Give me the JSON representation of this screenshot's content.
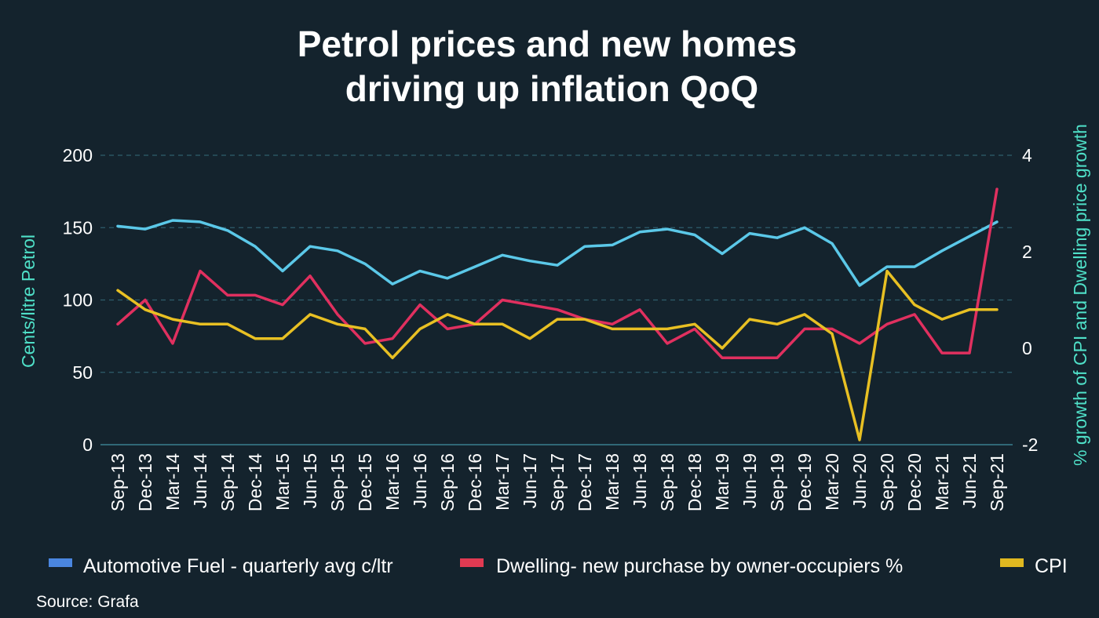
{
  "chart_data": {
    "type": "line",
    "title_lines": [
      "Petrol prices and new homes",
      "driving up inflation QoQ"
    ],
    "ylabel_left": "Cents/litre Petrol",
    "ylabel_right": "% growth of CPI and Dwelling price growth",
    "ylim_left": [
      0,
      200
    ],
    "ylim_right": [
      -2,
      4
    ],
    "yticks_left": [
      "0",
      "50",
      "100",
      "150",
      "200"
    ],
    "yticks_right": [
      "-2",
      "0",
      "2",
      "4"
    ],
    "grid": "dashed horizontal",
    "legend_position": "bottom",
    "categories": [
      "Sep-13",
      "Dec-13",
      "Mar-14",
      "Jun-14",
      "Sep-14",
      "Dec-14",
      "Mar-15",
      "Jun-15",
      "Sep-15",
      "Dec-15",
      "Mar-16",
      "Jun-16",
      "Sep-16",
      "Dec-16",
      "Mar-17",
      "Jun-17",
      "Sep-17",
      "Dec-17",
      "Mar-18",
      "Jun-18",
      "Sep-18",
      "Dec-18",
      "Mar-19",
      "Jun-19",
      "Sep-19",
      "Dec-19",
      "Mar-20",
      "Jun-20",
      "Sep-20",
      "Dec-20",
      "Mar-21",
      "Jun-21",
      "Sep-21"
    ],
    "series": [
      {
        "name": "Automotive Fuel - quarterly avg c/ltr",
        "axis": "left",
        "color": "#5bc8e8",
        "legend_color": "#4a86e0",
        "values": [
          151,
          149,
          155,
          154,
          148,
          137,
          120,
          137,
          134,
          125,
          111,
          120,
          115,
          123,
          131,
          127,
          124,
          137,
          138,
          147,
          149,
          145,
          132,
          146,
          143,
          150,
          139,
          110,
          123,
          123,
          134,
          144,
          154
        ]
      },
      {
        "name": "Dwelling- new purchase by owner-occupiers %",
        "axis": "right",
        "color": "#e0305f",
        "legend_color": "#e03a52",
        "values": [
          0.5,
          1.0,
          0.1,
          1.6,
          1.1,
          1.1,
          0.9,
          1.5,
          0.7,
          0.1,
          0.2,
          0.9,
          0.4,
          0.5,
          1.0,
          0.9,
          0.8,
          0.6,
          0.5,
          0.8,
          0.1,
          0.4,
          -0.2,
          -0.2,
          -0.2,
          0.4,
          0.4,
          0.1,
          0.5,
          0.7,
          -0.1,
          -0.1,
          3.3
        ]
      },
      {
        "name": "CPI",
        "axis": "right",
        "color": "#e8c023",
        "legend_color": "#e0b820",
        "values": [
          1.2,
          0.8,
          0.6,
          0.5,
          0.5,
          0.2,
          0.2,
          0.7,
          0.5,
          0.4,
          -0.2,
          0.4,
          0.7,
          0.5,
          0.5,
          0.2,
          0.6,
          0.6,
          0.4,
          0.4,
          0.4,
          0.5,
          0.0,
          0.6,
          0.5,
          0.7,
          0.3,
          -1.9,
          1.6,
          0.9,
          0.6,
          0.8,
          0.8
        ]
      }
    ]
  },
  "source": "Source: Grafa"
}
